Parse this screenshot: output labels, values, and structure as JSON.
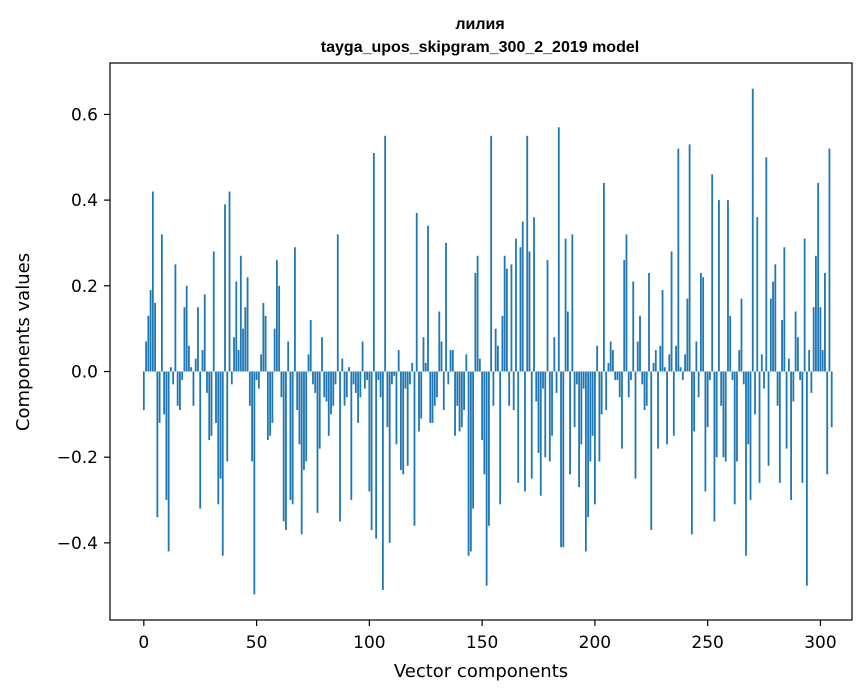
{
  "chart_data": {
    "type": "bar",
    "title": "лилия",
    "subtitle": "tayga_upos_skipgram_300_2_2019 model",
    "xlabel": "Vector components",
    "ylabel": "Components values",
    "xlim": [
      -15,
      314
    ],
    "ylim": [
      -0.58,
      0.72
    ],
    "xticks": [
      0,
      50,
      100,
      150,
      200,
      250,
      300
    ],
    "yticks": [
      -0.4,
      -0.2,
      0.0,
      0.2,
      0.4,
      0.6
    ],
    "ytick_labels": [
      "−0.4",
      "−0.2",
      "0.0",
      "0.2",
      "0.4",
      "0.6"
    ],
    "color": "#1f77b4",
    "grid": false,
    "values": [
      -0.09,
      0.07,
      0.13,
      0.19,
      0.42,
      0.16,
      -0.34,
      -0.12,
      0.32,
      -0.1,
      -0.3,
      -0.42,
      0.01,
      -0.03,
      0.25,
      -0.08,
      -0.09,
      -0.02,
      0.15,
      0.2,
      0.06,
      0.01,
      -0.08,
      0.03,
      0.15,
      -0.32,
      0.05,
      0.18,
      -0.05,
      -0.16,
      -0.15,
      0.28,
      -0.12,
      -0.31,
      -0.25,
      -0.43,
      0.39,
      -0.21,
      0.42,
      -0.03,
      0.08,
      0.21,
      0.05,
      0.27,
      0.1,
      0.15,
      0.22,
      -0.08,
      -0.21,
      -0.52,
      -0.02,
      -0.04,
      0.04,
      0.16,
      0.13,
      -0.16,
      -0.15,
      -0.12,
      0.1,
      0.26,
      0.2,
      -0.06,
      -0.35,
      -0.37,
      0.07,
      -0.3,
      -0.31,
      0.29,
      -0.09,
      -0.17,
      -0.38,
      -0.23,
      -0.21,
      0.04,
      0.12,
      -0.03,
      -0.05,
      -0.33,
      -0.18,
      0.08,
      -0.06,
      -0.07,
      -0.15,
      -0.1,
      -0.08,
      -0.03,
      0.32,
      -0.35,
      0.03,
      -0.08,
      -0.06,
      0.01,
      -0.3,
      -0.03,
      -0.05,
      -0.12,
      -0.06,
      0.07,
      -0.04,
      -0.02,
      -0.28,
      -0.37,
      0.51,
      -0.39,
      -0.02,
      -0.06,
      -0.51,
      0.55,
      -0.13,
      -0.4,
      -0.03,
      -0.01,
      -0.17,
      0.05,
      -0.23,
      -0.24,
      -0.04,
      -0.22,
      -0.03,
      0.02,
      -0.36,
      0.37,
      -0.14,
      -0.11,
      0.08,
      0.02,
      0.34,
      -0.12,
      -0.12,
      -0.08,
      -0.06,
      0.14,
      0.07,
      -0.09,
      0.3,
      -0.03,
      0.05,
      0.05,
      -0.15,
      -0.08,
      -0.14,
      -0.13,
      -0.09,
      0.04,
      -0.43,
      -0.42,
      -0.32,
      0.23,
      0.27,
      0.03,
      -0.16,
      -0.24,
      -0.5,
      -0.36,
      0.55,
      -0.08,
      0.1,
      0.06,
      -0.31,
      0.13,
      0.27,
      0.24,
      -0.08,
      0.25,
      -0.09,
      0.31,
      -0.26,
      0.29,
      0.35,
      -0.28,
      0.55,
      0.28,
      -0.25,
      0.36,
      -0.07,
      -0.19,
      -0.29,
      -0.04,
      -0.2,
      0.26,
      -0.21,
      -0.15,
      0.08,
      -0.05,
      0.57,
      -0.41,
      -0.41,
      0.31,
      0.14,
      -0.24,
      0.32,
      -0.13,
      -0.03,
      -0.27,
      -0.17,
      -0.04,
      -0.42,
      -0.34,
      -0.21,
      -0.15,
      -0.31,
      0.06,
      -0.21,
      -0.1,
      0.44,
      -0.09,
      0.02,
      0.07,
      0.05,
      -0.02,
      -0.02,
      -0.06,
      -0.18,
      0.26,
      0.32,
      -0.06,
      -0.02,
      0.21,
      -0.25,
      0.07,
      0.13,
      -0.03,
      -0.09,
      -0.08,
      0.23,
      -0.37,
      0.02,
      0.05,
      -0.18,
      0.06,
      0.19,
      0.01,
      -0.17,
      0.04,
      0.28,
      -0.15,
      0.06,
      0.52,
      0.01,
      -0.02,
      0.04,
      0.17,
      0.53,
      -0.38,
      -0.14,
      0.07,
      -0.06,
      0.23,
      0.22,
      -0.28,
      -0.13,
      -0.02,
      0.46,
      -0.35,
      -0.2,
      0.4,
      -0.08,
      -0.2,
      -0.21,
      0.4,
      0.13,
      -0.02,
      -0.31,
      -0.21,
      0.05,
      0.17,
      -0.03,
      -0.43,
      -0.17,
      -0.3,
      0.66,
      -0.1,
      0.36,
      -0.26,
      0.04,
      -0.04,
      0.5,
      -0.22,
      0.17,
      0.21,
      0.25,
      -0.08,
      -0.26,
      0.12,
      0.29,
      -0.18,
      0.03,
      -0.3,
      -0.07,
      0.14,
      0.08,
      -0.02,
      -0.26,
      0.31,
      -0.5,
      0.05,
      -0.05,
      0.15,
      0.27,
      0.44,
      0.15,
      0.05,
      0.23,
      -0.24,
      0.52,
      -0.13
    ]
  }
}
